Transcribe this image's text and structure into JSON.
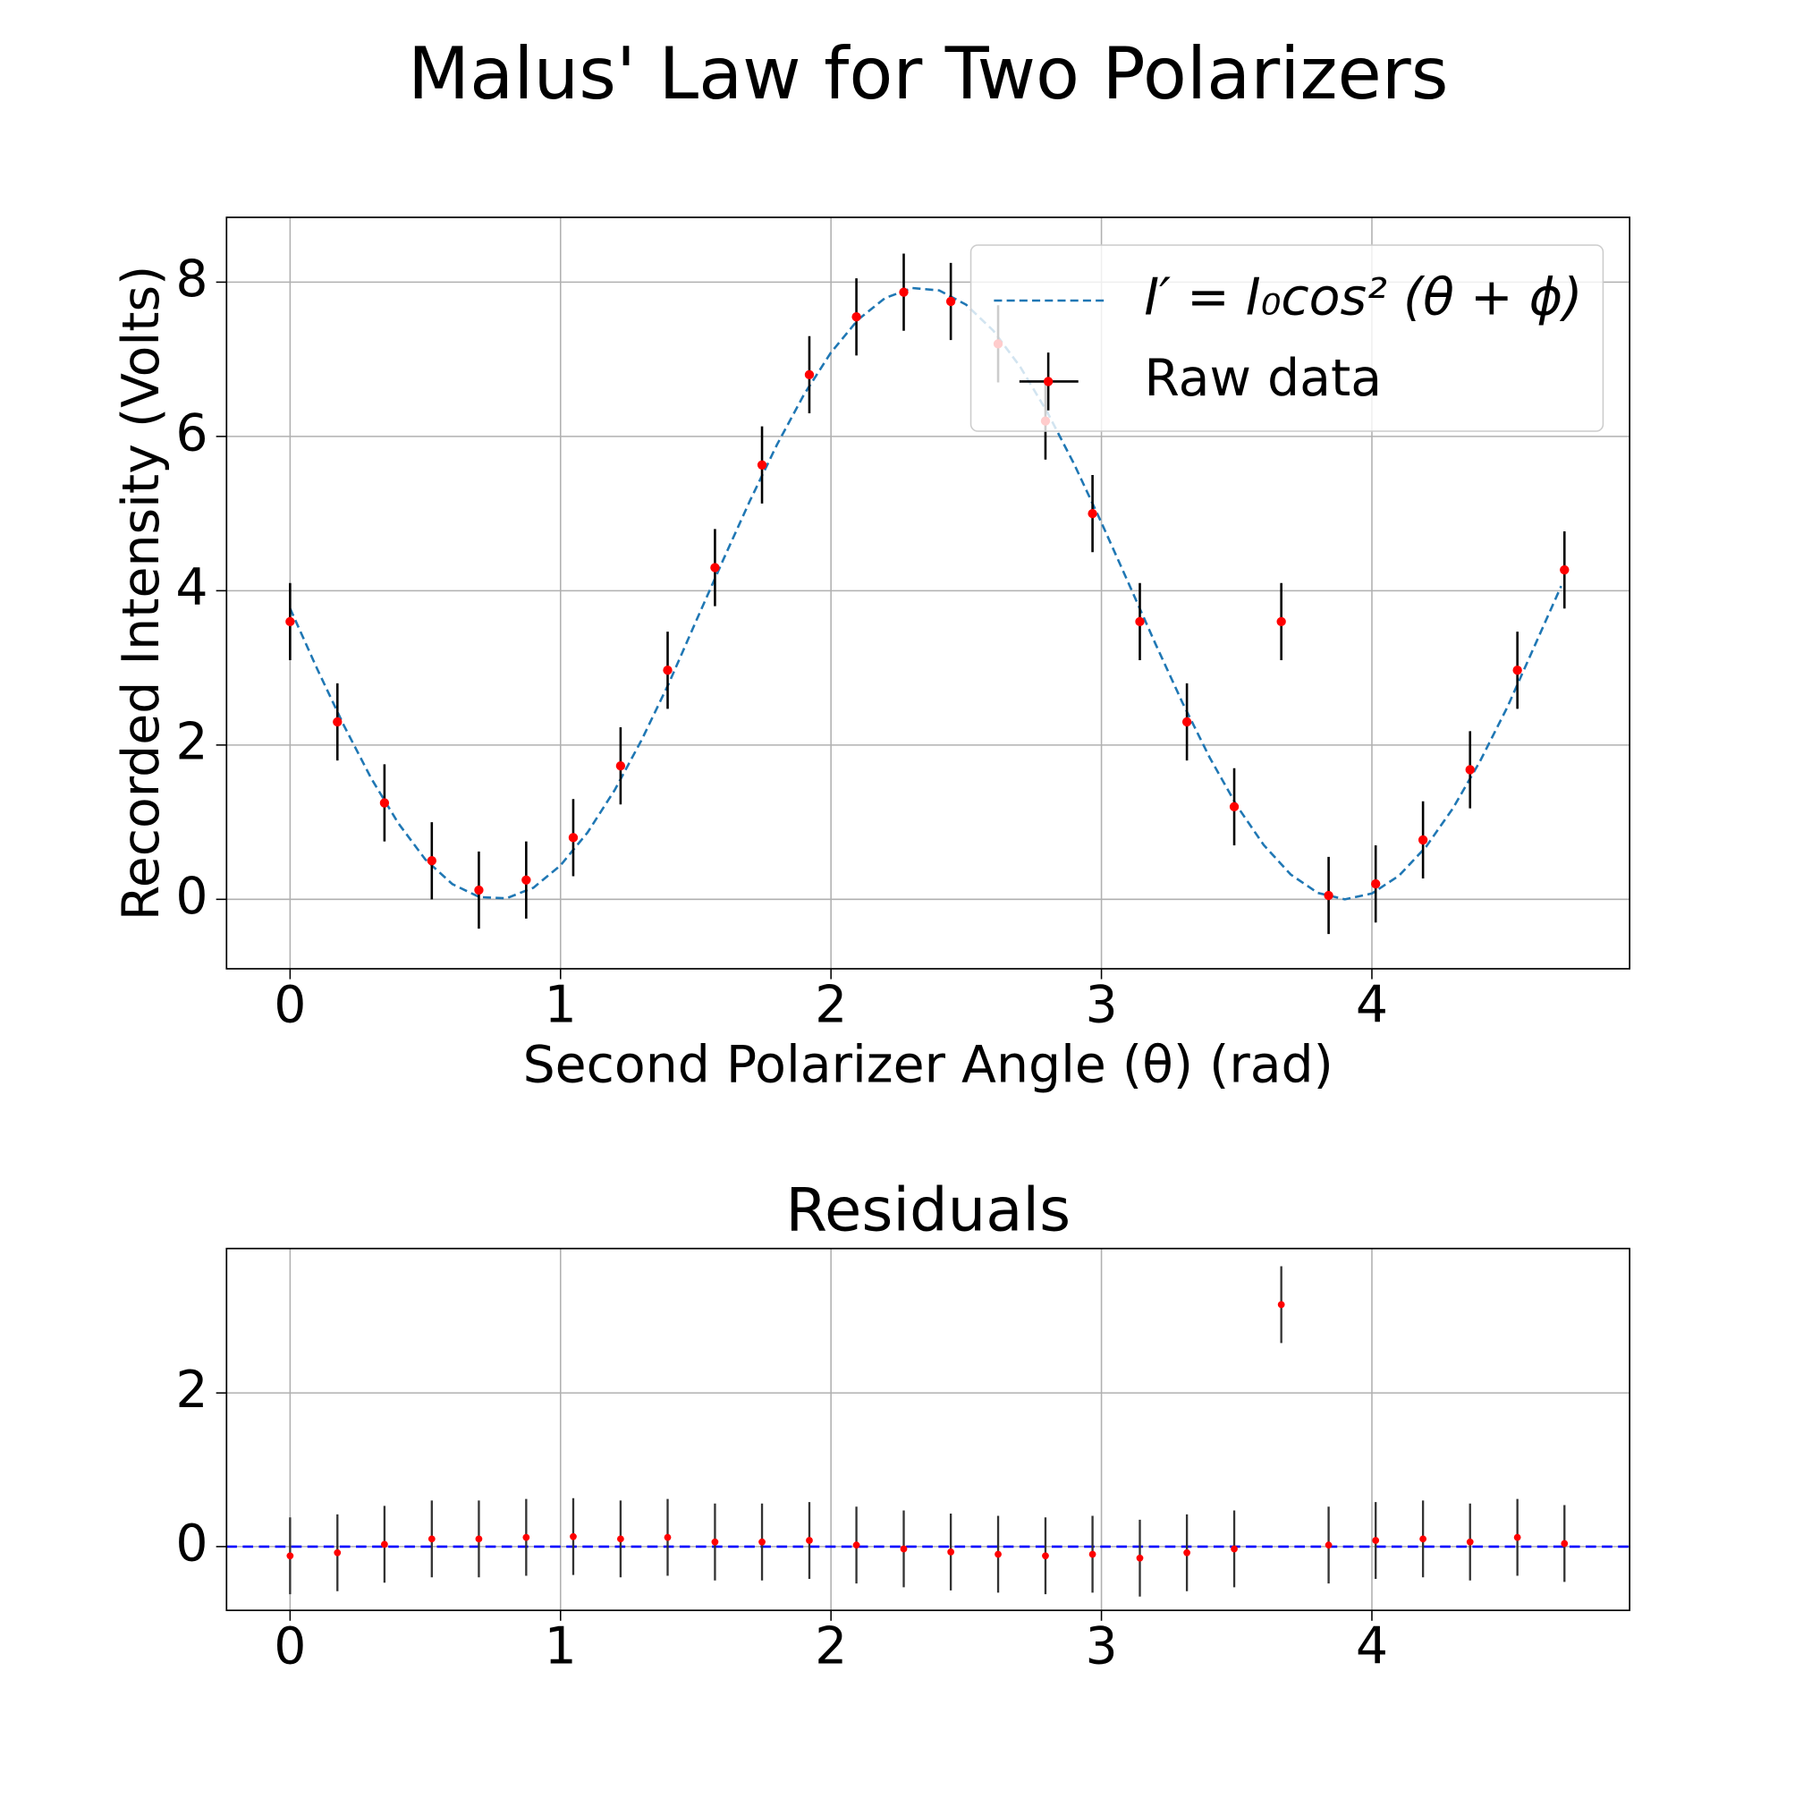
{
  "title": "Malus' Law for Two Polarizers",
  "chart_data": [
    {
      "type": "errorbar",
      "xlabel": "Second Polarizer Angle (θ) (rad)",
      "ylabel": "Recorded Intensity (Volts)",
      "xlim": [
        -0.235,
        4.953
      ],
      "ylim": [
        -0.9,
        8.84
      ],
      "xticks": [
        0,
        1,
        2,
        3,
        4
      ],
      "yticks": [
        0,
        2,
        4,
        6,
        8
      ],
      "grid": true,
      "legend": "upper right",
      "series": [
        {
          "name": "I′ = I₀cos² (θ + ϕ)",
          "color": "#1f77b4",
          "linestyle": "dashed",
          "x": [
            0,
            0.1,
            0.2,
            0.3,
            0.4,
            0.5,
            0.6,
            0.7,
            0.8,
            0.9,
            1.0,
            1.1,
            1.2,
            1.3,
            1.4,
            1.5,
            1.6,
            1.7,
            1.8,
            1.9,
            2.0,
            2.1,
            2.2,
            2.3,
            2.4,
            2.5,
            2.6,
            2.7,
            2.8,
            2.9,
            3.0,
            3.1,
            3.2,
            3.3,
            3.4,
            3.5,
            3.6,
            3.7,
            3.8,
            3.9,
            4.0,
            4.1,
            4.2,
            4.3,
            4.4,
            4.5,
            4.6,
            4.7
          ],
          "values": [
            3.77,
            2.988,
            2.246,
            1.568,
            0.987,
            0.517,
            0.197,
            0.029,
            0.013,
            0.151,
            0.44,
            0.867,
            1.415,
            2.067,
            2.796,
            3.597,
            4.389,
            5.164,
            5.891,
            6.542,
            7.088,
            7.513,
            7.794,
            7.924,
            7.893,
            7.707,
            7.372,
            6.901,
            6.313,
            5.635,
            4.883,
            4.099,
            3.309,
            2.546,
            1.839,
            1.217,
            0.704,
            0.321,
            0.083,
            0.0,
            0.076,
            0.306,
            0.68,
            1.182,
            1.791,
            2.485,
            3.272,
            4.061
          ]
        },
        {
          "name": "Raw data",
          "color": "red",
          "errorbar_color": "black",
          "x": [
            0,
            0.175,
            0.349,
            0.524,
            0.698,
            0.873,
            1.047,
            1.222,
            1.396,
            1.571,
            1.745,
            1.92,
            2.094,
            2.269,
            2.443,
            2.618,
            2.793,
            2.967,
            3.142,
            3.316,
            3.491,
            3.665,
            3.84,
            4.014,
            4.189,
            4.363,
            4.538,
            4.712
          ],
          "values": [
            3.6,
            2.3,
            1.25,
            0.5,
            0.12,
            0.25,
            0.8,
            1.73,
            2.97,
            4.3,
            5.63,
            6.8,
            7.55,
            7.87,
            7.75,
            7.2,
            6.2,
            5.0,
            3.6,
            2.3,
            1.2,
            3.6,
            0.05,
            0.2,
            0.77,
            1.68,
            2.97,
            4.27
          ],
          "errors": [
            0.5,
            0.5,
            0.5,
            0.5,
            0.5,
            0.5,
            0.5,
            0.5,
            0.5,
            0.5,
            0.5,
            0.5,
            0.5,
            0.5,
            0.5,
            0.5,
            0.5,
            0.5,
            0.5,
            0.5,
            0.5,
            0.5,
            0.5,
            0.5,
            0.5,
            0.5,
            0.5,
            0.5
          ]
        }
      ]
    },
    {
      "type": "errorbar",
      "title": "Residuals",
      "xlim": [
        -0.235,
        4.953
      ],
      "ylim": [
        -0.83,
        3.88
      ],
      "xticks": [
        0,
        1,
        2,
        3,
        4
      ],
      "yticks": [
        0,
        2
      ],
      "grid": true,
      "hline": {
        "value": 0,
        "color": "blue",
        "linestyle": "dashed"
      },
      "series": [
        {
          "color": "red",
          "errorbar_color": "#333333",
          "x": [
            0,
            0.175,
            0.349,
            0.524,
            0.698,
            0.873,
            1.047,
            1.222,
            1.396,
            1.571,
            1.745,
            1.92,
            2.094,
            2.269,
            2.443,
            2.618,
            2.793,
            2.967,
            3.142,
            3.316,
            3.491,
            3.665,
            3.84,
            4.014,
            4.189,
            4.363,
            4.538,
            4.712
          ],
          "values": [
            -0.12,
            -0.08,
            0.03,
            0.1,
            0.1,
            0.12,
            0.13,
            0.1,
            0.12,
            0.06,
            0.06,
            0.08,
            0.02,
            -0.03,
            -0.07,
            -0.1,
            -0.12,
            -0.1,
            -0.15,
            -0.08,
            -0.03,
            3.15,
            0.02,
            0.08,
            0.1,
            0.06,
            0.12,
            0.04
          ],
          "errors": [
            0.5,
            0.5,
            0.5,
            0.5,
            0.5,
            0.5,
            0.5,
            0.5,
            0.5,
            0.5,
            0.5,
            0.5,
            0.5,
            0.5,
            0.5,
            0.5,
            0.5,
            0.5,
            0.5,
            0.5,
            0.5,
            0.5,
            0.5,
            0.5,
            0.5,
            0.5,
            0.5,
            0.5
          ]
        }
      ]
    }
  ]
}
